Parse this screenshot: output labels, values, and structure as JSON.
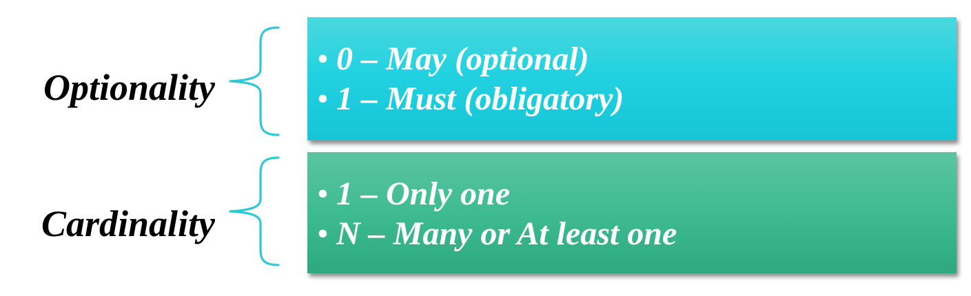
{
  "colors": {
    "brace": "#31c6d6",
    "optionality_box": "#22d2e0",
    "cardinality_box": "#3fbb91",
    "bullet_text": "#ffffff",
    "term_text": "#000000"
  },
  "groups": [
    {
      "term": "Optionality",
      "items": [
        "0 – May (optional)",
        "1 – Must (obligatory)"
      ]
    },
    {
      "term": "Cardinality",
      "items": [
        "1 – Only one",
        "N – Many or At least one"
      ]
    }
  ]
}
